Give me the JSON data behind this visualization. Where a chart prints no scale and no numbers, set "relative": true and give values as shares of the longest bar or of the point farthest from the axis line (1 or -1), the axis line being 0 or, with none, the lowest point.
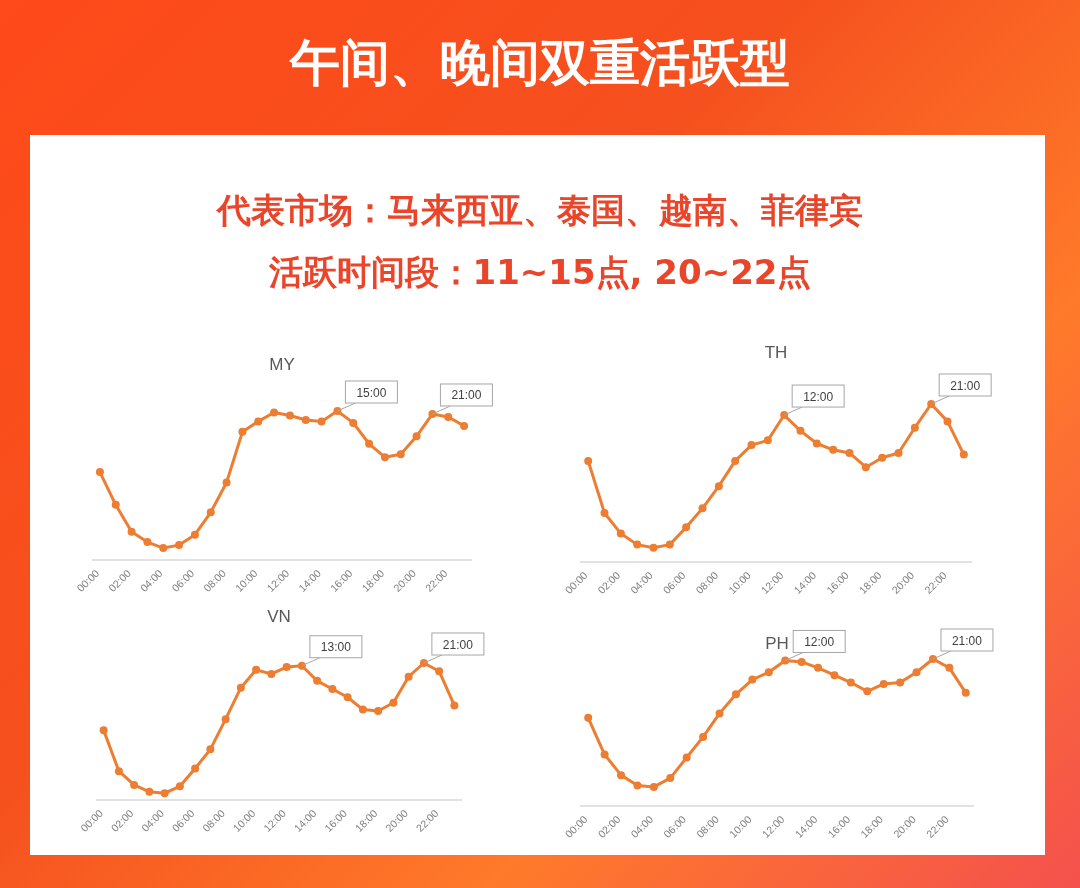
{
  "chart_data": [
    {
      "type": "line",
      "title": "MY",
      "relative": true,
      "marker": "circle",
      "color": "#ed7d31",
      "categories": [
        "00:00",
        null,
        "02:00",
        null,
        "04:00",
        null,
        "06:00",
        null,
        "08:00",
        null,
        "10:00",
        null,
        "12:00",
        null,
        "14:00",
        null,
        "16:00",
        null,
        "18:00",
        null,
        "20:00",
        null,
        "22:00",
        null
      ],
      "values": [
        0.59,
        0.37,
        0.19,
        0.12,
        0.08,
        0.1,
        0.17,
        0.32,
        0.52,
        0.86,
        0.93,
        0.99,
        0.97,
        0.94,
        0.93,
        1,
        0.92,
        0.78,
        0.69,
        0.71,
        0.83,
        0.98,
        0.96,
        0.9
      ],
      "annotations": [
        "午间、晚间双重活跃型",
        "代表市场：马来西亚、泰国、越南、菲律宾",
        "活跃时间段：11~15点, 20~22点",
        "15:00",
        "21:00"
      ]
    },
    {
      "type": "line",
      "title": "TH",
      "relative": true,
      "marker": "circle",
      "color": "#ed7d31",
      "categories": [
        "00:00",
        null,
        "02:00",
        null,
        "04:00",
        null,
        "06:00",
        null,
        "08:00",
        null,
        "10:00",
        null,
        "12:00",
        null,
        "14:00",
        null,
        "16:00",
        null,
        "18:00",
        null,
        "20:00",
        null,
        "22:00",
        null
      ],
      "values": [
        0.64,
        0.31,
        0.18,
        0.11,
        0.09,
        0.11,
        0.22,
        0.34,
        0.48,
        0.64,
        0.74,
        0.77,
        0.93,
        0.83,
        0.75,
        0.71,
        0.69,
        0.6,
        0.66,
        0.69,
        0.85,
        1,
        0.89,
        0.68
      ],
      "annotations": [
        "12:00",
        "21:00"
      ]
    },
    {
      "type": "line",
      "title": "VN",
      "relative": true,
      "marker": "circle",
      "color": "#ed7d31",
      "categories": [
        "00:00",
        null,
        "02:00",
        null,
        "04:00",
        null,
        "06:00",
        null,
        "08:00",
        null,
        "10:00",
        null,
        "12:00",
        null,
        "14:00",
        null,
        "16:00",
        null,
        "18:00",
        null,
        "20:00",
        null,
        "22:00",
        null
      ],
      "values": [
        0.51,
        0.21,
        0.11,
        0.06,
        0.05,
        0.1,
        0.23,
        0.37,
        0.59,
        0.82,
        0.95,
        0.92,
        0.97,
        0.98,
        0.87,
        0.81,
        0.75,
        0.66,
        0.65,
        0.71,
        0.9,
        1,
        0.94,
        0.69
      ],
      "annotations": [
        "13:00",
        "21:00"
      ]
    },
    {
      "type": "line",
      "title": "PH",
      "relative": true,
      "marker": "circle",
      "color": "#ed7d31",
      "categories": [
        "00:00",
        null,
        "02:00",
        null,
        "04:00",
        null,
        "06:00",
        null,
        "08:00",
        null,
        "10:00",
        null,
        "12:00",
        null,
        "14:00",
        null,
        "16:00",
        null,
        "18:00",
        null,
        "20:00",
        null,
        "22:00",
        null
      ],
      "values": [
        0.6,
        0.35,
        0.21,
        0.14,
        0.13,
        0.19,
        0.33,
        0.47,
        0.63,
        0.76,
        0.86,
        0.91,
        0.99,
        0.98,
        0.94,
        0.89,
        0.84,
        0.78,
        0.83,
        0.84,
        0.91,
        1,
        0.94,
        0.77
      ],
      "annotations": [
        "12:00",
        "21:00"
      ]
    }
  ]
}
